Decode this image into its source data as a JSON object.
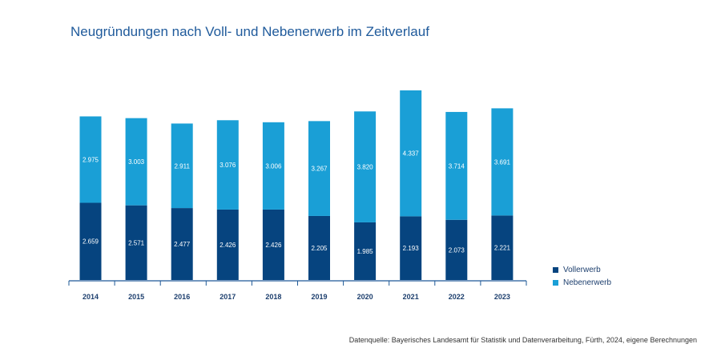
{
  "title": "Neugründungen nach Voll- und Nebenerwerb im Zeitverlauf",
  "source": "Datenquelle: Bayerisches Landesamt für Statistik und Datenverarbeitung, Fürth, 2024, eigene Berechnungen",
  "colors": {
    "voll": "#06447f",
    "neben": "#1a9fd6",
    "axis": "#1d5896",
    "label": "#1d3f6e"
  },
  "chart_data": {
    "type": "bar",
    "stacked": true,
    "title": "Neugründungen nach Voll- und Nebenerwerb im Zeitverlauf",
    "xlabel": "",
    "ylabel": "",
    "categories": [
      "2014",
      "2015",
      "2016",
      "2017",
      "2018",
      "2019",
      "2020",
      "2021",
      "2022",
      "2023"
    ],
    "series": [
      {
        "name": "Vollerwerb",
        "values": [
          2659,
          2571,
          2477,
          2426,
          2426,
          2205,
          1985,
          2193,
          2073,
          2221
        ],
        "labels": [
          "2.659",
          "2.571",
          "2.477",
          "2.426",
          "2.426",
          "2.205",
          "1.985",
          "2.193",
          "2.073",
          "2.221"
        ]
      },
      {
        "name": "Nebenerwerb",
        "values": [
          2975,
          3003,
          2911,
          3076,
          3006,
          3267,
          3820,
          4337,
          3714,
          3691
        ],
        "labels": [
          "2.975",
          "3.003",
          "2.911",
          "3.076",
          "3.006",
          "3.267",
          "3.820",
          "4.337",
          "3.714",
          "3.691"
        ]
      }
    ],
    "legend_position": "right",
    "grid": false
  }
}
